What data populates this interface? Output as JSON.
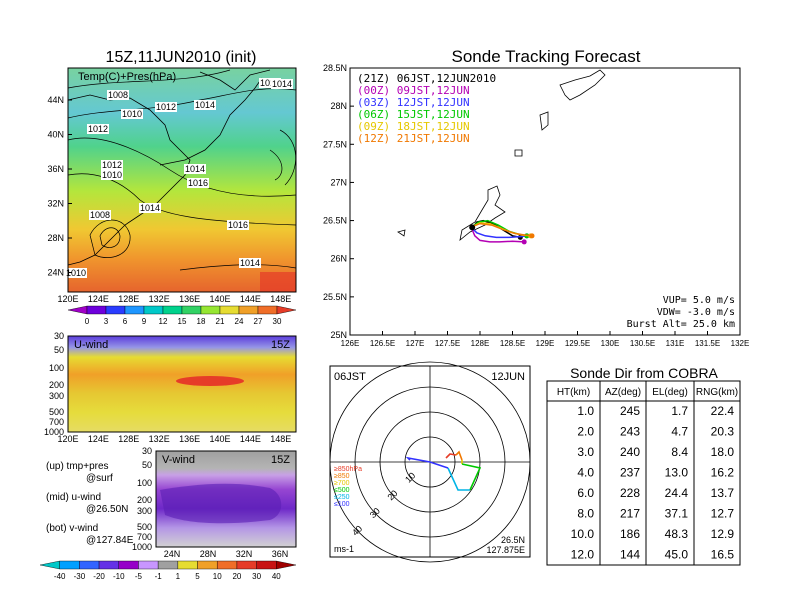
{
  "left_panel": {
    "title": "15Z,11JUN2010 (init)",
    "upper_map": {
      "label": "Temp(C)+Pres(hPa)",
      "lat_ticks": [
        "44N",
        "40N",
        "36N",
        "32N",
        "28N",
        "24N"
      ],
      "lon_ticks": [
        "120E",
        "124E",
        "128E",
        "132E",
        "136E",
        "140E",
        "144E",
        "148E"
      ],
      "isobar_labels": [
        "1010",
        "1008",
        "1010",
        "1012",
        "1014",
        "1014",
        "1012",
        "1012",
        "1010",
        "1014",
        "1016",
        "1014",
        "1008",
        "1016",
        "1010",
        "1014"
      ]
    },
    "temp_colorbar": {
      "ticks": [
        "0",
        "3",
        "6",
        "9",
        "12",
        "15",
        "18",
        "21",
        "24",
        "27",
        "30"
      ],
      "colors": [
        "#a000c8",
        "#6e00dc",
        "#2a3cff",
        "#1e96ff",
        "#00c8c8",
        "#00d28c",
        "#32d264",
        "#96e632",
        "#e6dc32",
        "#f0a028",
        "#f06e28",
        "#e63c28"
      ]
    },
    "u_wind_panel": {
      "label": "U-wind",
      "time": "15Z",
      "p_ticks": [
        "30",
        "50",
        "100",
        "200",
        "300",
        "500",
        "700",
        "1000"
      ],
      "lon_ticks": [
        "120E",
        "124E",
        "128E",
        "132E",
        "136E",
        "140E",
        "144E",
        "148E"
      ]
    },
    "v_wind_panel": {
      "label": "V-wind",
      "time": "15Z",
      "p_ticks": [
        "30",
        "50",
        "100",
        "200",
        "300",
        "500",
        "700",
        "1000"
      ],
      "lat_ticks": [
        "24N",
        "28N",
        "32N",
        "36N"
      ]
    },
    "legend_notes": [
      {
        "line1": "(up) tmp+pres",
        "line2": "@surf"
      },
      {
        "line1": "(mid) u-wind",
        "line2": "@26.50N"
      },
      {
        "line1": "(bot) v-wind",
        "line2": "@127.84E"
      }
    ],
    "wind_colorbar": {
      "ticks": [
        "-40",
        "-30",
        "-20",
        "-10",
        "-5",
        "-1",
        "1",
        "5",
        "10",
        "20",
        "30",
        "40"
      ],
      "colors": [
        "#00c8c8",
        "#00a0ff",
        "#3264ff",
        "#6432e6",
        "#9600c8",
        "#c896ff",
        "#a0a0a0",
        "#e6dc32",
        "#f0a028",
        "#f06e28",
        "#e63c28",
        "#c81414",
        "#a00000"
      ]
    }
  },
  "track_panel": {
    "title": "Sonde Tracking Forecast",
    "lat_ticks": [
      "28.5N",
      "28N",
      "27.5N",
      "27N",
      "26.5N",
      "26N",
      "25.5N",
      "25N"
    ],
    "lon_ticks": [
      "126E",
      "126.5E",
      "127E",
      "127.5E",
      "128E",
      "128.5E",
      "129E",
      "129.5E",
      "130E",
      "130.5E",
      "131E",
      "131.5E",
      "132E"
    ],
    "legend": [
      {
        "text": "(21Z) 06JST,12JUN2010",
        "color": "#000000"
      },
      {
        "text": "(00Z) 09JST,12JUN",
        "color": "#b400b4"
      },
      {
        "text": "(03Z) 12JST,12JUN",
        "color": "#3232ff"
      },
      {
        "text": "(06Z) 15JST,12JUN",
        "color": "#00c800"
      },
      {
        "text": "(09Z) 18JST,12JUN",
        "color": "#e6c800"
      },
      {
        "text": "(12Z) 21JST,12JUN",
        "color": "#f07800"
      }
    ],
    "params": {
      "vup": "VUP=  5.0 m/s",
      "vdw": "VDW= -3.0 m/s",
      "burst": "Burst Alt= 25.0 km"
    }
  },
  "polar_panel": {
    "time_left": "06JST",
    "time_right": "12JUN",
    "ring_labels": [
      "10",
      "20",
      "30",
      "40"
    ],
    "level_legend": [
      {
        "text": "≥850hPa",
        "color": "#e63c28"
      },
      {
        "text": "≥850",
        "color": "#f07800"
      },
      {
        "text": "≥700",
        "color": "#e6c800"
      },
      {
        "text": "≤500",
        "color": "#00c800"
      },
      {
        "text": "≤250",
        "color": "#00b4e6"
      },
      {
        "text": "≤100",
        "color": "#3232ff"
      }
    ],
    "units": "ms-1",
    "lat": "26.5N",
    "lon": "127.875E"
  },
  "sonde_table": {
    "title": "Sonde Dir from COBRA",
    "headers": [
      "HT(km)",
      "AZ(deg)",
      "EL(deg)",
      "RNG(km)"
    ],
    "rows": [
      [
        "1.0",
        "245",
        "1.7",
        "22.4"
      ],
      [
        "2.0",
        "243",
        "4.7",
        "20.3"
      ],
      [
        "3.0",
        "240",
        "8.4",
        "18.0"
      ],
      [
        "4.0",
        "237",
        "13.0",
        "16.2"
      ],
      [
        "6.0",
        "228",
        "24.4",
        "13.7"
      ],
      [
        "8.0",
        "217",
        "37.1",
        "12.7"
      ],
      [
        "10.0",
        "186",
        "48.3",
        "12.9"
      ],
      [
        "12.0",
        "144",
        "45.0",
        "16.5"
      ]
    ]
  },
  "chart_data": [
    {
      "type": "heatmap",
      "title": "15Z,11JUN2010 (init)",
      "label": "Temp(C)+Pres(hPa)",
      "xlim": [
        120,
        150
      ],
      "ylim": [
        22,
        47
      ],
      "colorbar_ticks": [
        0,
        3,
        6,
        9,
        12,
        15,
        18,
        21,
        24,
        27,
        30
      ]
    },
    {
      "type": "heatmap",
      "label": "U-wind",
      "ylim": [
        1000,
        30
      ],
      "yscale": "log"
    },
    {
      "type": "heatmap",
      "label": "V-wind",
      "ylim": [
        1000,
        30
      ],
      "yscale": "log"
    },
    {
      "type": "line",
      "title": "Sonde Tracking Forecast",
      "xlim": [
        126,
        132
      ],
      "ylim": [
        25,
        28.5
      ],
      "series": [
        {
          "name": "(21Z) 06JST,12JUN2010",
          "x": [
            127.88,
            127.95,
            128.05,
            128.2,
            128.35,
            128.5,
            128.62
          ],
          "y": [
            26.4,
            26.48,
            26.5,
            26.46,
            26.38,
            26.3,
            26.28
          ]
        },
        {
          "name": "(00Z) 09JST,12JUN",
          "x": [
            127.88,
            127.92,
            128.0,
            128.15,
            128.3,
            128.5,
            128.68
          ],
          "y": [
            26.38,
            26.3,
            26.24,
            26.22,
            26.22,
            26.23,
            26.22
          ]
        },
        {
          "name": "(03Z) 12JST,12JUN",
          "x": [
            127.88,
            127.95,
            128.08,
            128.25,
            128.45,
            128.62,
            128.72
          ],
          "y": [
            26.4,
            26.34,
            26.3,
            26.28,
            26.28,
            26.29,
            26.3
          ]
        },
        {
          "name": "(06Z) 15JST,12JUN",
          "x": [
            127.88,
            127.98,
            128.12,
            128.28,
            128.45,
            128.6,
            128.72
          ],
          "y": [
            26.42,
            26.48,
            26.5,
            26.44,
            26.36,
            26.32,
            26.3
          ]
        },
        {
          "name": "(09Z) 18JST,12JUN",
          "x": [
            127.88,
            128.0,
            128.15,
            128.32,
            128.5,
            128.65,
            128.78
          ],
          "y": [
            26.42,
            26.47,
            26.46,
            26.4,
            26.34,
            26.31,
            26.3
          ]
        },
        {
          "name": "(12Z) 21JST,12JUN",
          "x": [
            127.88,
            128.0,
            128.18,
            128.36,
            128.54,
            128.7,
            128.8
          ],
          "y": [
            26.42,
            26.46,
            26.44,
            26.38,
            26.33,
            26.31,
            26.3
          ]
        }
      ]
    },
    {
      "type": "table",
      "title": "Sonde Dir from COBRA",
      "columns": [
        "HT(km)",
        "AZ(deg)",
        "EL(deg)",
        "RNG(km)"
      ],
      "rows": [
        [
          1.0,
          245,
          1.7,
          22.4
        ],
        [
          2.0,
          243,
          4.7,
          20.3
        ],
        [
          3.0,
          240,
          8.4,
          18.0
        ],
        [
          4.0,
          237,
          13.0,
          16.2
        ],
        [
          6.0,
          228,
          24.4,
          13.7
        ],
        [
          8.0,
          217,
          37.1,
          12.7
        ],
        [
          10.0,
          186,
          48.3,
          12.9
        ],
        [
          12.0,
          144,
          45.0,
          16.5
        ]
      ]
    }
  ]
}
